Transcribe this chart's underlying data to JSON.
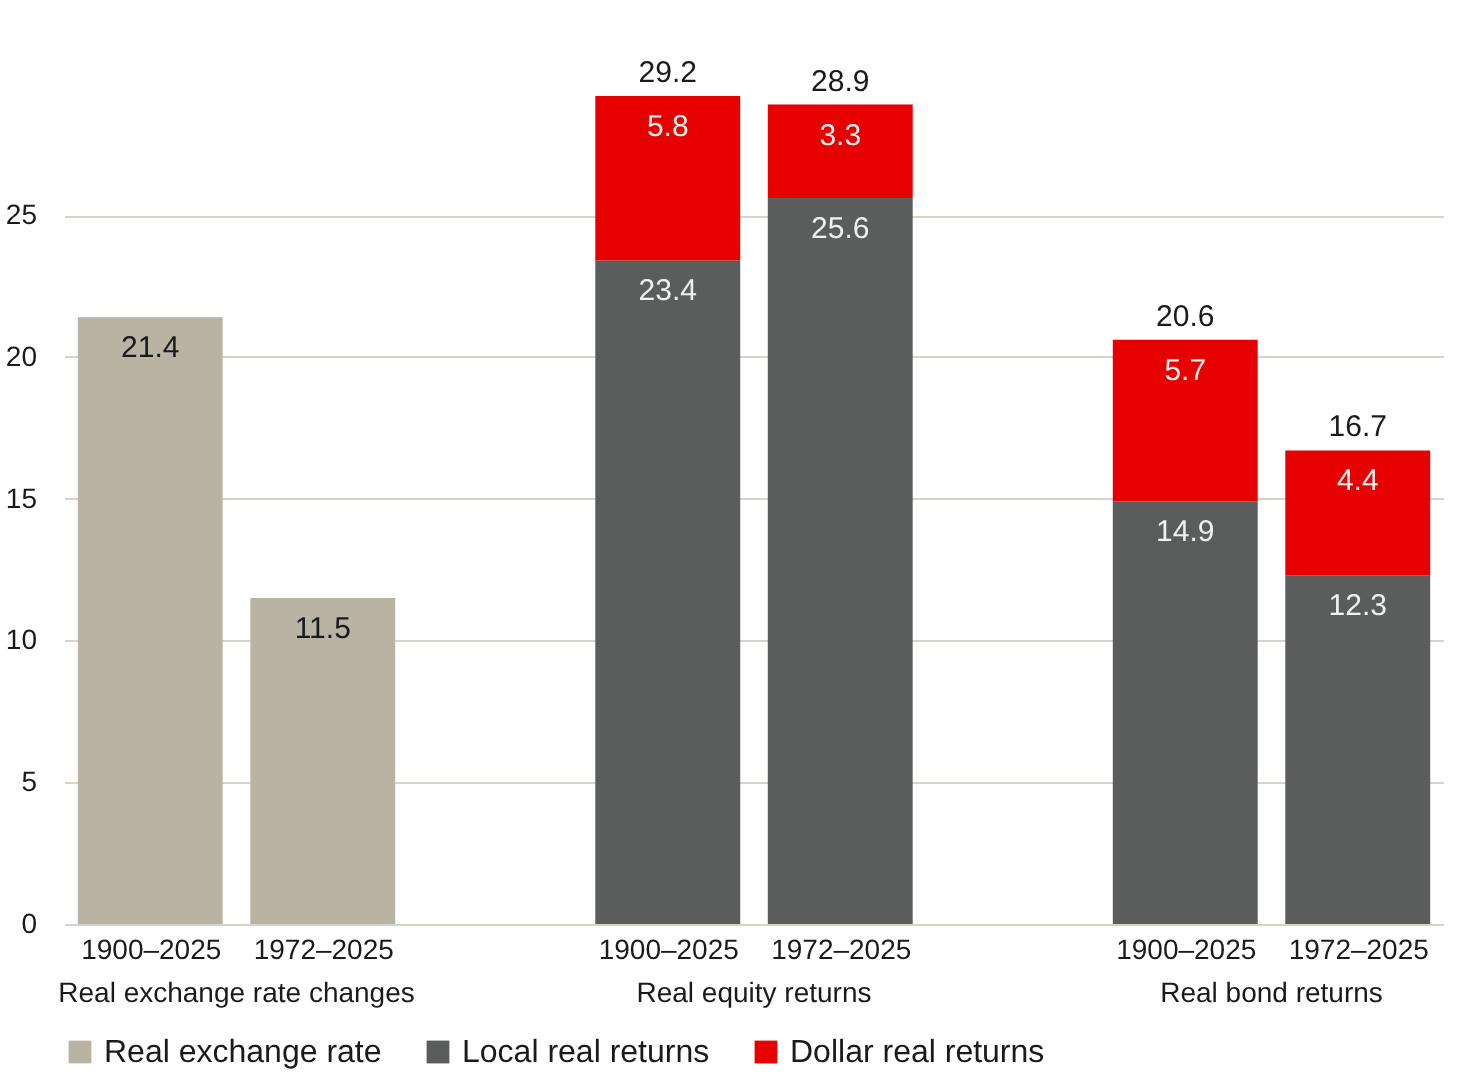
{
  "chart_data": {
    "type": "bar",
    "stacked": true,
    "categories": [
      "1900–2025",
      "1972–2025",
      null,
      "1900–2025",
      "1972–2025",
      null,
      "1900–2025",
      "1972–2025"
    ],
    "series": [
      {
        "name": "Real exchange rate",
        "color": "#b9b3a4",
        "values": [
          21.4,
          11.5,
          null,
          null,
          null,
          null,
          null,
          null
        ]
      },
      {
        "name": "Local real returns",
        "color": "#5b5d5c",
        "values": [
          null,
          null,
          null,
          23.4,
          25.6,
          null,
          14.9,
          12.3
        ]
      },
      {
        "name": "Dollar real returns",
        "color": "#e60000",
        "values": [
          null,
          null,
          null,
          5.8,
          3.3,
          null,
          5.7,
          4.4
        ]
      }
    ],
    "totals": [
      null,
      null,
      null,
      "29.2",
      "28.9",
      null,
      "20.6",
      "16.7"
    ],
    "annotations": [
      "Real exchange rate changes",
      "Real equity returns",
      "Real bond returns"
    ],
    "ylim": [
      0,
      29.2
    ],
    "yticks": [
      0,
      5,
      10,
      15,
      20,
      25
    ],
    "grid": "y",
    "legend": "bottom",
    "data_labels": true
  }
}
